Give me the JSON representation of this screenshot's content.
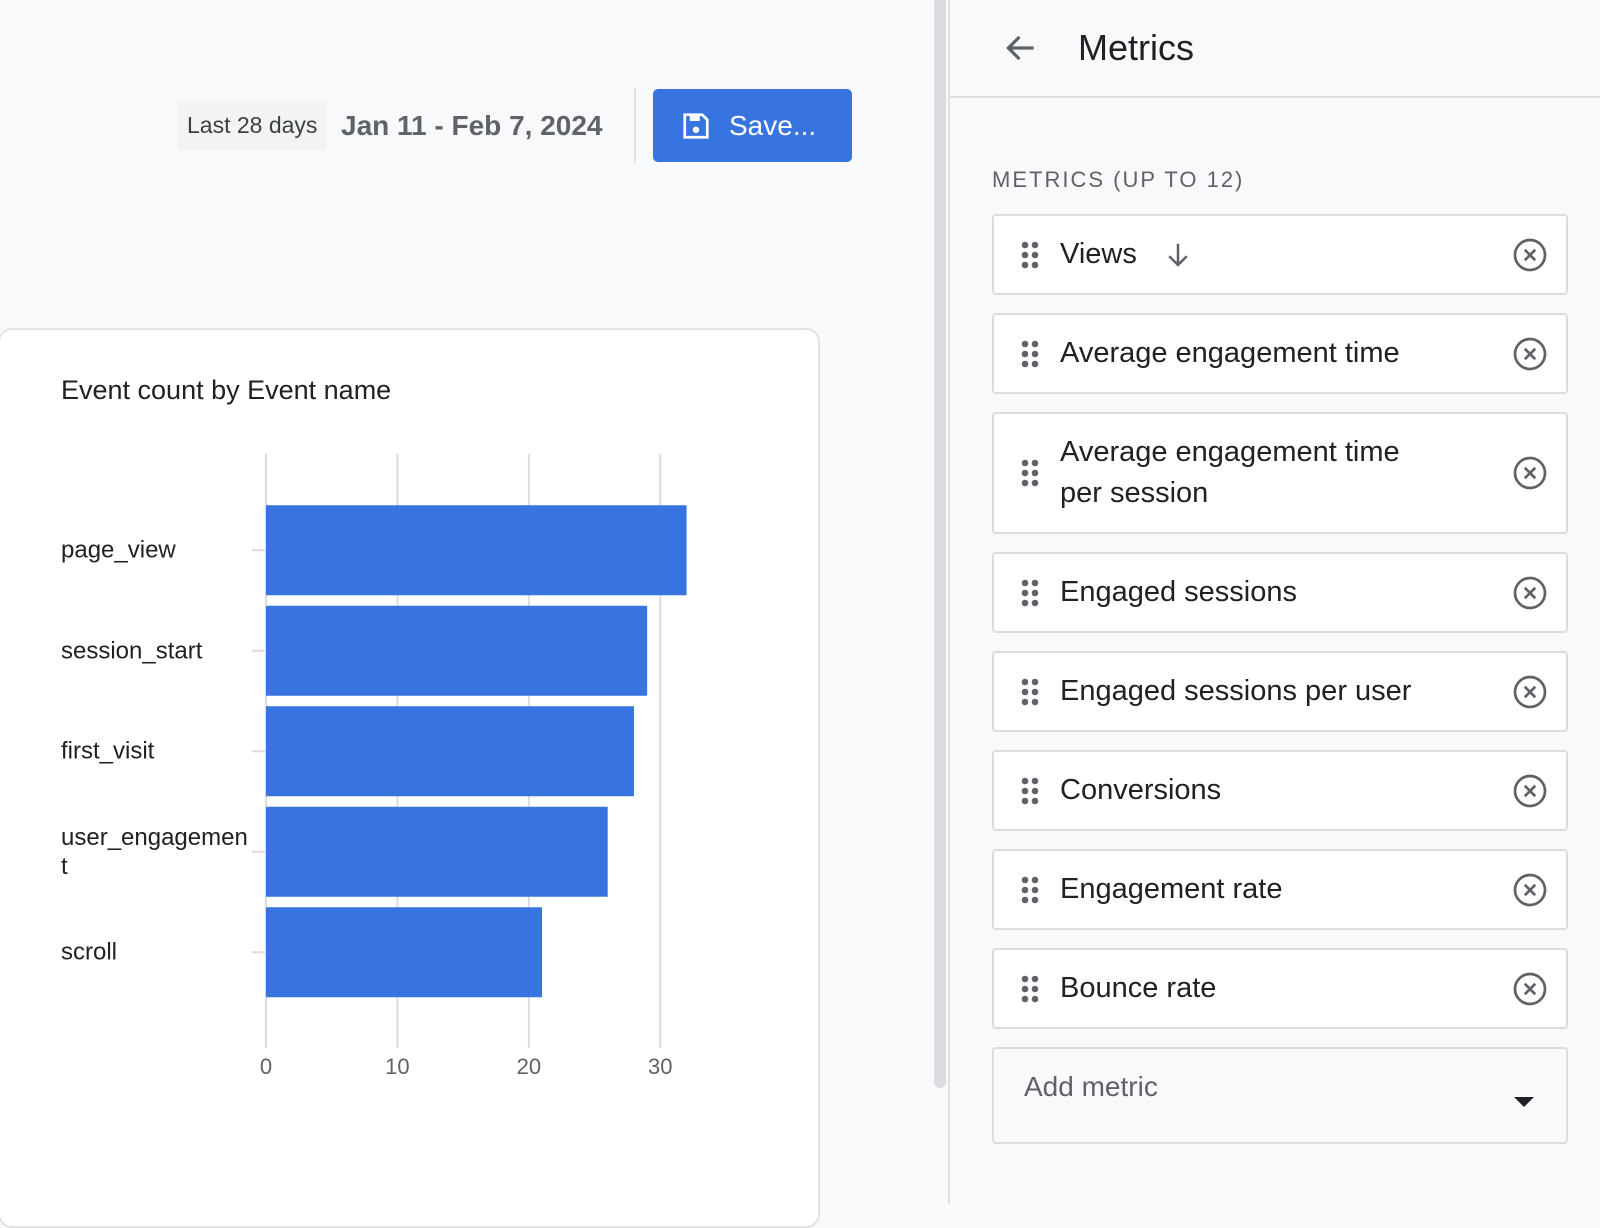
{
  "date_range": {
    "preset": "Last 28 days",
    "range": "Jan 11 - Feb 7, 2024"
  },
  "save_button": "Save...",
  "panel": {
    "title": "Metrics",
    "section_label": "METRICS (UP TO 12)",
    "metrics": [
      "Views",
      "Average engagement time",
      "Average engagement time per session",
      "Engaged sessions",
      "Engaged sessions per user",
      "Conversions",
      "Engagement rate",
      "Bounce rate"
    ],
    "add_metric": "Add metric"
  },
  "chart_data": {
    "type": "hbar",
    "title": "Event count by Event name",
    "categories": [
      "page_view",
      "session_start",
      "first_visit",
      "user_engagement",
      "scroll"
    ],
    "values": [
      32,
      29,
      28,
      26,
      21
    ],
    "color": "#3874e0",
    "xlim": [
      0,
      35
    ],
    "xticks": [
      0,
      10,
      20,
      30
    ],
    "grid": true
  }
}
